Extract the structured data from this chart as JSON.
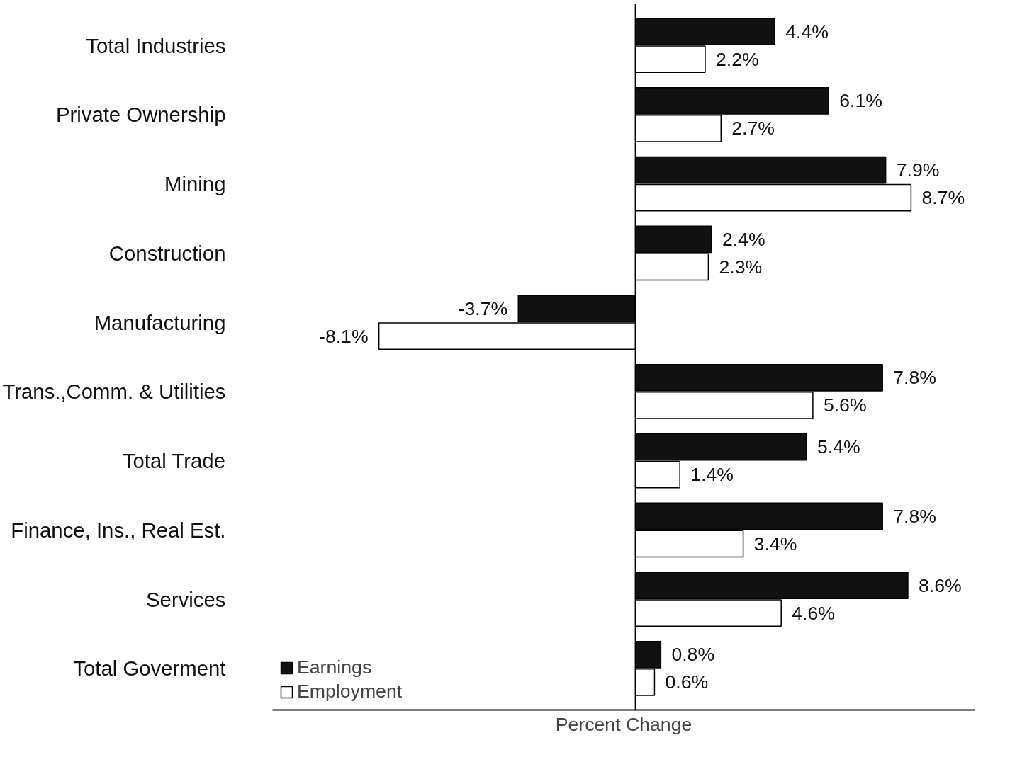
{
  "chart_data": {
    "type": "bar",
    "orientation": "horizontal",
    "xlabel": "Percent Change",
    "categories": [
      "Total Industries",
      "Private Ownership",
      "Mining",
      "Construction",
      "Manufacturing",
      "Trans.,Comm. & Utilities",
      "Total Trade",
      "Finance, Ins., Real Est.",
      "Services",
      "Total Goverment"
    ],
    "series": [
      {
        "name": "Earnings",
        "color": "#111111",
        "values": [
          4.4,
          6.1,
          7.9,
          2.4,
          -3.7,
          7.8,
          5.4,
          7.8,
          8.6,
          0.8
        ],
        "value_labels": [
          "4.4%",
          "6.1%",
          "7.9%",
          "2.4%",
          "-3.7%",
          "7.8%",
          "5.4%",
          "7.8%",
          "8.6%",
          "0.8%"
        ]
      },
      {
        "name": "Employment",
        "color": "#ffffff",
        "values": [
          2.2,
          2.7,
          8.7,
          2.3,
          -8.1,
          5.6,
          1.4,
          3.4,
          4.6,
          0.6
        ],
        "value_labels": [
          "2.2%",
          "2.7%",
          "8.7%",
          "2.3%",
          "-8.1%",
          "5.6%",
          "1.4%",
          "3.4%",
          "4.6%",
          "0.6%"
        ]
      }
    ],
    "ref_lines": [
      {
        "axis": "x",
        "value": 0,
        "label": null,
        "color": "#000000"
      }
    ],
    "legend": "bottom left",
    "grid": false
  }
}
